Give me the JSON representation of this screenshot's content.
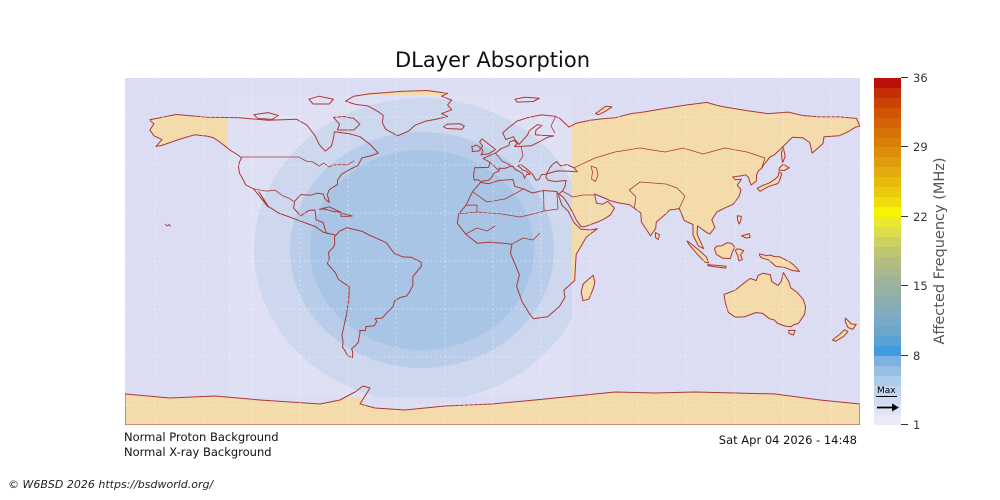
{
  "title": "DLayer Absorption",
  "status": {
    "proton": "Normal Proton Background",
    "xray": "Normal X-ray Background"
  },
  "timestamp": "Sat Apr 04 2026 - 14:48",
  "copyright": "© W6BSD 2026 https://bsdworld.org/",
  "colorbar": {
    "label": "Affected Frequency (MHz)",
    "range": [
      1,
      36
    ],
    "ticks": [
      36,
      29,
      22,
      15,
      8,
      1
    ],
    "max_marker_label": "Max",
    "max_marker_value": 4.3,
    "segments_bottom_to_top": [
      "#eaeaf8",
      "#dfe3f6",
      "#d1dcf2",
      "#c0d4ee",
      "#adcbea",
      "#97bfe5",
      "#7db1e0",
      "#419cdf",
      "#5aa1d6",
      "#6ca6cc",
      "#79a9c4",
      "#84abba",
      "#8dadaf",
      "#96b0a4",
      "#9fb399",
      "#a9b88e",
      "#b3be80",
      "#bfc671",
      "#ccd161",
      "#dbdd4b",
      "#ebe92f",
      "#f7f303",
      "#eedd0a",
      "#e9cb0d",
      "#e6bb0e",
      "#e3ab0d",
      "#e09c0b",
      "#dd8e09",
      "#da8008",
      "#d77206",
      "#d36305",
      "#cf5404",
      "#ca4203",
      "#c42e02",
      "#bb0f0e"
    ]
  },
  "map": {
    "ocean_color": "#dcdcf2",
    "land_color": "#f4dbab",
    "border_color": "#a93939",
    "daylight_color": "#dfe0f4",
    "absorption_level_colors": [
      "#cdd7ee",
      "#b9cdea",
      "#a9c5e5"
    ],
    "grid_color": "rgba(255,255,255,0.55)"
  },
  "chart_data": {
    "type": "heatmap",
    "title": "DLayer Absorption",
    "colorbar_label": "Affected Frequency (MHz)",
    "colorbar_range": [
      1,
      36
    ],
    "colorbar_ticks": [
      36,
      29,
      22,
      15,
      8,
      1
    ],
    "max_affected_frequency_mhz": 4,
    "absorption_center": {
      "lon": -43,
      "lat": 5
    },
    "absorption_rings_mhz": [
      1,
      2,
      3,
      4
    ],
    "sunlit_longitude_span": [
      -132,
      42
    ],
    "legend_position": "right",
    "annotations": [
      "Normal Proton Background",
      "Normal X-ray Background",
      "Sat Apr 04 2026 - 14:48",
      "Max"
    ]
  }
}
